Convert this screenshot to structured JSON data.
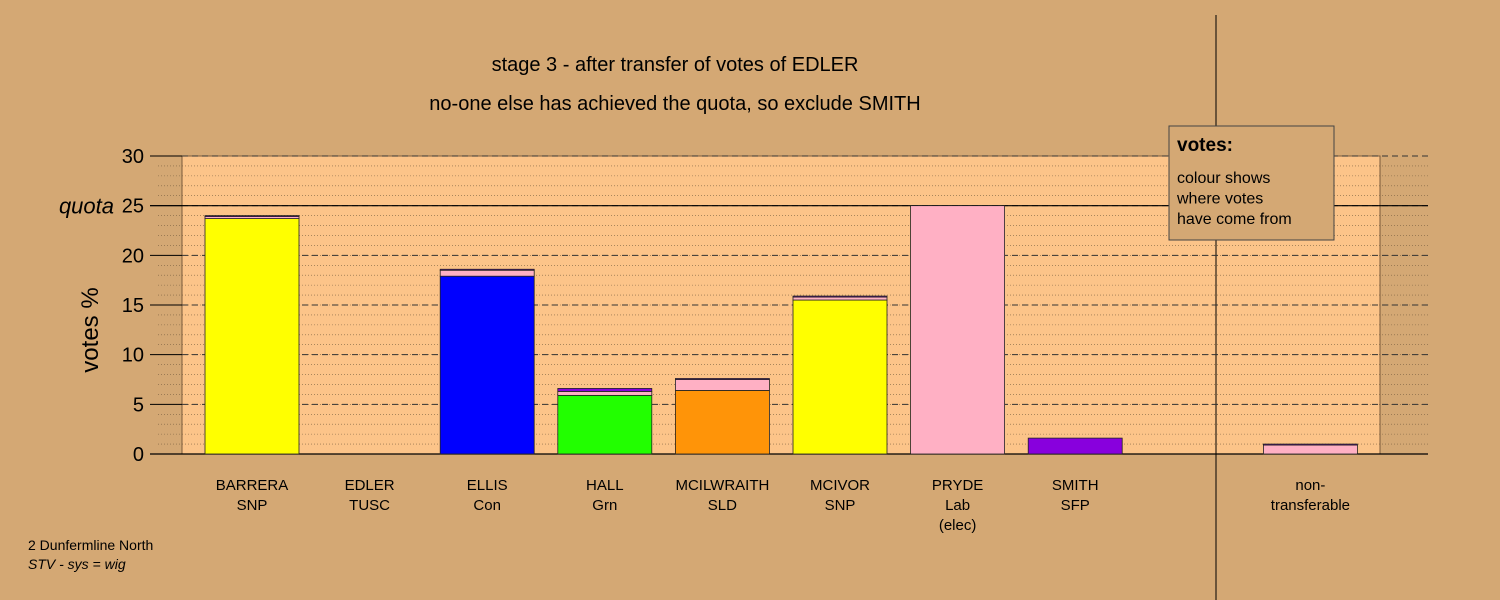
{
  "chart_data": {
    "type": "stacked_bar",
    "title": "stage 3 - after transfer of votes of EDLER",
    "subtitle": "no-one else has achieved the quota, so exclude SMITH",
    "y_label": "votes %",
    "categories": [
      [
        "BARRERA",
        "SNP"
      ],
      [
        "EDLER",
        "TUSC"
      ],
      [
        "ELLIS",
        "Con"
      ],
      [
        "HALL",
        "Grn"
      ],
      [
        "MCILWRAITH",
        "SLD"
      ],
      [
        "MCIVOR",
        "SNP"
      ],
      [
        "PRYDE",
        "Lab",
        "(elec)"
      ],
      [
        "SMITH",
        "SFP"
      ],
      null,
      [
        "non-",
        "transferable"
      ]
    ],
    "series": [
      {
        "color": "#ffff00",
        "values": [
          23.7,
          0,
          0,
          0,
          0,
          15.5,
          0,
          0,
          null,
          0
        ]
      },
      {
        "color": "#0000ff",
        "values": [
          0,
          0,
          17.9,
          0,
          0,
          0,
          0,
          0,
          null,
          0
        ]
      },
      {
        "color": "#22ff00",
        "values": [
          0,
          0,
          0,
          5.9,
          0,
          0,
          0,
          0,
          null,
          0
        ]
      },
      {
        "color": "#ff9408",
        "values": [
          0,
          0,
          0,
          0,
          6.4,
          0,
          0,
          0,
          null,
          0
        ]
      },
      {
        "color": "#ffb0c4",
        "values": [
          0.2,
          0,
          0.6,
          0.4,
          1.1,
          0.3,
          25,
          0,
          null,
          0.9
        ]
      },
      {
        "color": "#8800dd",
        "values": [
          0.1,
          0,
          0.1,
          0.3,
          0.1,
          0.1,
          0,
          1.6,
          null,
          0.1
        ]
      }
    ],
    "ylim": [
      0,
      30
    ],
    "yticks": [
      0,
      5,
      10,
      15,
      20,
      25,
      30
    ],
    "quota": {
      "value": 25,
      "label": "quota"
    },
    "grid": true,
    "legend": {
      "title": "votes:",
      "lines": [
        "colour shows",
        "where votes",
        "have come from"
      ]
    },
    "footer": [
      "2 Dunfermline North",
      "STV - sys = wig"
    ]
  }
}
